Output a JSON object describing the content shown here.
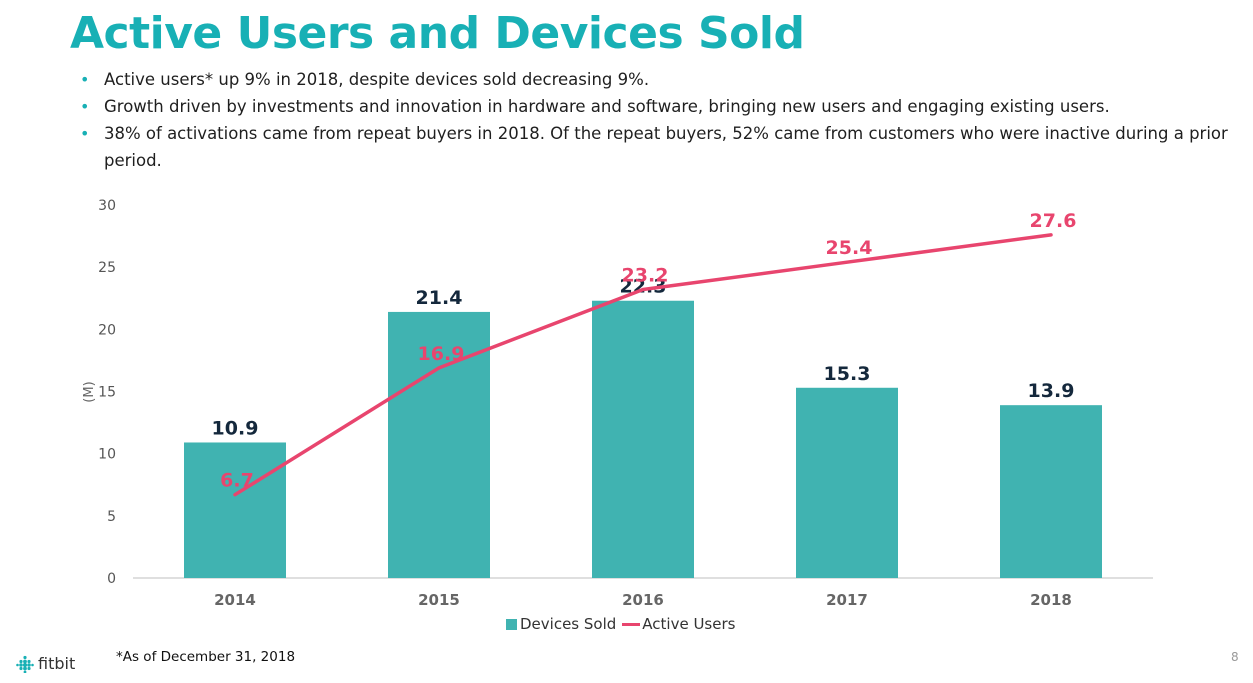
{
  "slide": {
    "title": "Active Users and Devices Sold",
    "bullets": [
      "Active users* up 9% in 2018, despite devices sold decreasing 9%.",
      "Growth driven by investments and innovation in hardware and software, bringing new users and engaging existing users.",
      "38% of activations came from repeat buyers in 2018.  Of the repeat buyers, 52% came from customers who were inactive during a prior period."
    ],
    "footnote": "*As of December 31, 2018",
    "logo_text": "fitbit",
    "page_number": "8"
  },
  "chart_data": {
    "type": "bar",
    "categories": [
      "2014",
      "2015",
      "2016",
      "2017",
      "2018"
    ],
    "ylabel": "(M)",
    "ylim": [
      0,
      30
    ],
    "yticks": [
      0,
      5,
      10,
      15,
      20,
      25,
      30
    ],
    "grid": false,
    "legend_position": "bottom",
    "series": [
      {
        "name": "Devices Sold",
        "type": "bar",
        "color": "#40b3b1",
        "label_color": "#14283c",
        "values": [
          10.9,
          21.4,
          22.3,
          15.3,
          13.9
        ]
      },
      {
        "name": "Active Users",
        "type": "line",
        "color": "#e8456e",
        "label_color": "#e8456e",
        "values": [
          6.7,
          16.9,
          23.2,
          25.4,
          27.6
        ]
      }
    ]
  },
  "colors": {
    "title": "#18b0b5",
    "bars": "#40b3b1",
    "line": "#e8456e"
  }
}
